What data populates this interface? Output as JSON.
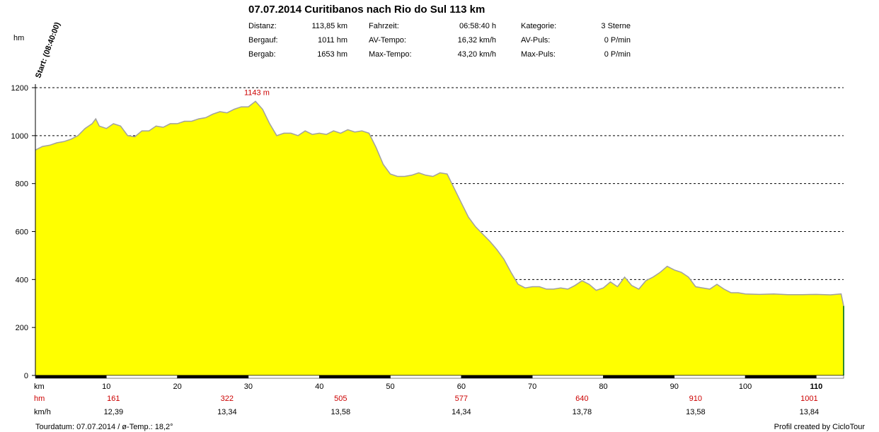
{
  "header": {
    "title": "07.07.2014 Curitibanos nach Rio do Sul 113 km",
    "start_label": "Start: (08:40:00)",
    "stats": [
      {
        "label": "Distanz:",
        "value": "113,85 km"
      },
      {
        "label": "Bergauf:",
        "value": "1011 hm"
      },
      {
        "label": "Bergab:",
        "value": "1653 hm"
      },
      {
        "label": "Fahrzeit:",
        "value": "06:58:40 h"
      },
      {
        "label": "AV-Tempo:",
        "value": "16,32 km/h"
      },
      {
        "label": "Max-Tempo:",
        "value": "43,20 km/h"
      },
      {
        "label": "Kategorie:",
        "value": "3 Sterne"
      },
      {
        "label": "AV-Puls:",
        "value": "0 P/min"
      },
      {
        "label": "Max-Puls:",
        "value": "0 P/min"
      }
    ]
  },
  "chart_data": {
    "type": "area",
    "ylabel": "hm",
    "ylim": [
      0,
      1200
    ],
    "yticks": [
      0,
      200,
      400,
      600,
      800,
      1000,
      1200
    ],
    "xlim": [
      0,
      113.85
    ],
    "xticks": [
      10,
      20,
      30,
      40,
      50,
      60,
      70,
      80,
      90,
      100,
      110
    ],
    "xtick_labels": [
      "10",
      "20",
      "30",
      "40",
      "50",
      "60",
      "70",
      "80",
      "90",
      "100",
      "110"
    ],
    "grid": "horizontal dashed",
    "fill_color": "#ffff00",
    "line_color": "#a0a0a0",
    "peak": {
      "x": 31,
      "y": 1143,
      "label": "1143 m"
    },
    "peak_color": "#cc0000",
    "x": [
      0,
      1,
      2,
      3,
      4,
      5,
      6,
      7,
      8,
      8.5,
      9,
      10,
      11,
      12,
      13,
      14,
      15,
      16,
      17,
      18,
      19,
      20,
      21,
      22,
      23,
      24,
      25,
      26,
      27,
      28,
      29,
      30,
      31,
      32,
      33,
      34,
      35,
      36,
      37,
      38,
      39,
      40,
      41,
      42,
      43,
      44,
      45,
      46,
      47,
      48,
      49,
      50,
      51,
      52,
      53,
      54,
      55,
      56,
      57,
      58,
      59,
      60,
      61,
      62,
      63,
      64,
      65,
      66,
      67,
      68,
      69,
      70,
      71,
      72,
      73,
      74,
      75,
      76,
      77,
      78,
      79,
      80,
      81,
      82,
      83,
      84,
      85,
      86,
      87,
      88,
      89,
      90,
      91,
      92,
      93,
      94,
      95,
      96,
      97,
      98,
      99,
      100,
      102,
      104,
      106,
      108,
      110,
      112,
      113.5,
      113.85
    ],
    "y": [
      940,
      955,
      960,
      970,
      975,
      985,
      1000,
      1030,
      1050,
      1070,
      1040,
      1030,
      1050,
      1040,
      1000,
      995,
      1020,
      1020,
      1040,
      1035,
      1050,
      1050,
      1060,
      1060,
      1070,
      1075,
      1090,
      1100,
      1095,
      1110,
      1120,
      1120,
      1143,
      1110,
      1050,
      1000,
      1010,
      1010,
      1000,
      1020,
      1005,
      1010,
      1005,
      1020,
      1010,
      1025,
      1015,
      1020,
      1010,
      950,
      880,
      840,
      830,
      830,
      835,
      845,
      835,
      830,
      845,
      840,
      780,
      720,
      660,
      620,
      590,
      560,
      525,
      485,
      430,
      380,
      365,
      370,
      370,
      360,
      360,
      365,
      360,
      375,
      395,
      380,
      355,
      365,
      390,
      370,
      410,
      375,
      360,
      395,
      410,
      430,
      455,
      440,
      430,
      410,
      370,
      365,
      360,
      380,
      360,
      345,
      345,
      340,
      338,
      340,
      337,
      337,
      338,
      336,
      340,
      290
    ],
    "rows": [
      {
        "label": "km",
        "color": "#000000",
        "values": []
      },
      {
        "label": "hm",
        "color": "#cc0000",
        "values": [
          {
            "x": 11,
            "text": "161"
          },
          {
            "x": 27,
            "text": "322"
          },
          {
            "x": 43,
            "text": "505"
          },
          {
            "x": 60,
            "text": "577"
          },
          {
            "x": 77,
            "text": "640"
          },
          {
            "x": 93,
            "text": "910"
          },
          {
            "x": 109,
            "text": "1001"
          }
        ]
      },
      {
        "label": "km/h",
        "color": "#000000",
        "values": [
          {
            "x": 11,
            "text": "12,39"
          },
          {
            "x": 27,
            "text": "13,34"
          },
          {
            "x": 43,
            "text": "13,58"
          },
          {
            "x": 60,
            "text": "14,34"
          },
          {
            "x": 77,
            "text": "13,78"
          },
          {
            "x": 93,
            "text": "13,58"
          },
          {
            "x": 109,
            "text": "13,84"
          }
        ]
      }
    ]
  },
  "footer": {
    "left": "Tourdatum: 07.07.2014  /  ø-Temp.: 18,2°",
    "right": "Profil created by CicloTour"
  }
}
